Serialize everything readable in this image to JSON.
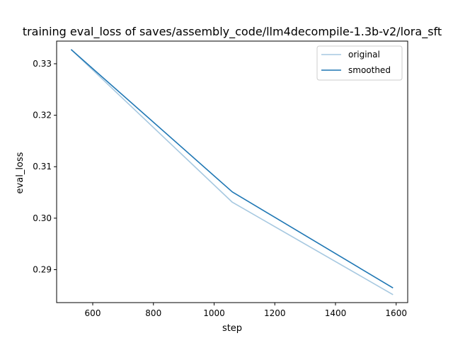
{
  "chart_data": {
    "type": "line",
    "title": "training eval_loss of saves/assembly_code/llm4decompile-1.3b-v2/lora_sft",
    "xlabel": "step",
    "ylabel": "eval_loss",
    "xlim": [
      481,
      1638
    ],
    "ylim": [
      0.2836,
      0.3344
    ],
    "xticks": [
      600,
      800,
      1000,
      1200,
      1400,
      1600
    ],
    "xtick_labels": [
      "600",
      "800",
      "1000",
      "1200",
      "1400",
      "1600"
    ],
    "yticks": [
      0.29,
      0.3,
      0.31,
      0.32,
      0.33
    ],
    "ytick_labels": [
      "0.29",
      "0.30",
      "0.31",
      "0.32",
      "0.33"
    ],
    "grid": false,
    "legend_position": "top-right",
    "series": [
      {
        "name": "original",
        "color": "#a6c8e0",
        "x": [
          530,
          1060,
          1588
        ],
        "y": [
          0.3327,
          0.3031,
          0.2852
        ]
      },
      {
        "name": "smoothed",
        "color": "#1f77b4",
        "x": [
          530,
          1060,
          1588
        ],
        "y": [
          0.3327,
          0.3051,
          0.2865
        ]
      }
    ]
  }
}
